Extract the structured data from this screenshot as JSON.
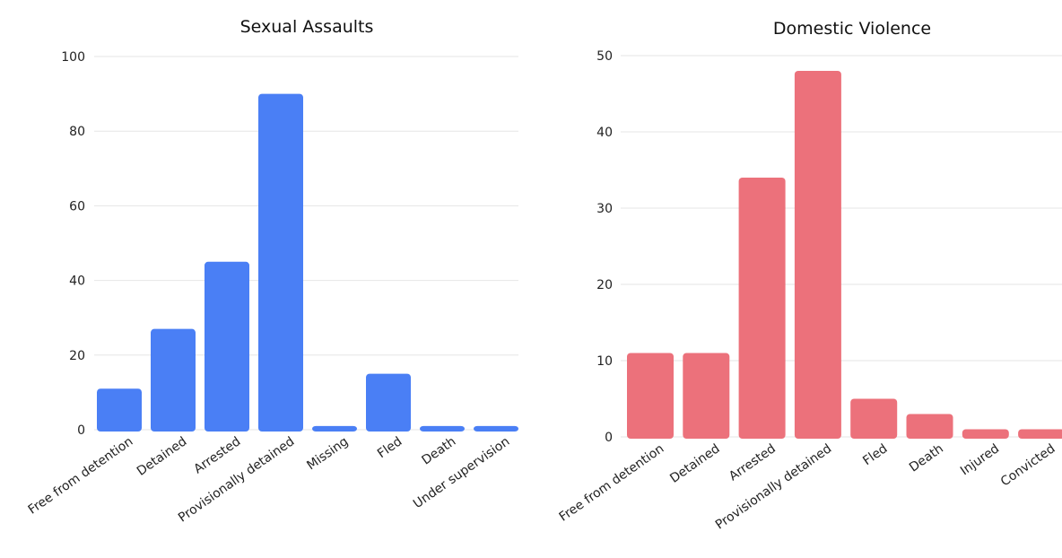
{
  "chart_data": [
    {
      "type": "bar",
      "title": "Sexual Assaults",
      "categories": [
        "Free from detention",
        "Detained",
        "Arrested",
        "Provisionally detained",
        "Missing",
        "Fled",
        "Death",
        "Under supervision"
      ],
      "values": [
        11,
        27,
        45,
        90,
        1,
        15,
        1,
        1
      ],
      "ylim": [
        0,
        100
      ],
      "yticks": [
        0,
        20,
        40,
        60,
        80,
        100
      ],
      "grid": true,
      "color": "#4a7ff5"
    },
    {
      "type": "bar",
      "title": "Domestic Violence",
      "categories": [
        "Free from detention",
        "Detained",
        "Arrested",
        "Provisionally detained",
        "Fled",
        "Death",
        "Injured",
        "Convicted"
      ],
      "values": [
        11,
        11,
        34,
        48,
        5,
        3,
        1,
        1
      ],
      "ylim": [
        0,
        50
      ],
      "yticks": [
        0,
        10,
        20,
        30,
        40,
        50
      ],
      "grid": true,
      "color": "#ec717b"
    }
  ]
}
